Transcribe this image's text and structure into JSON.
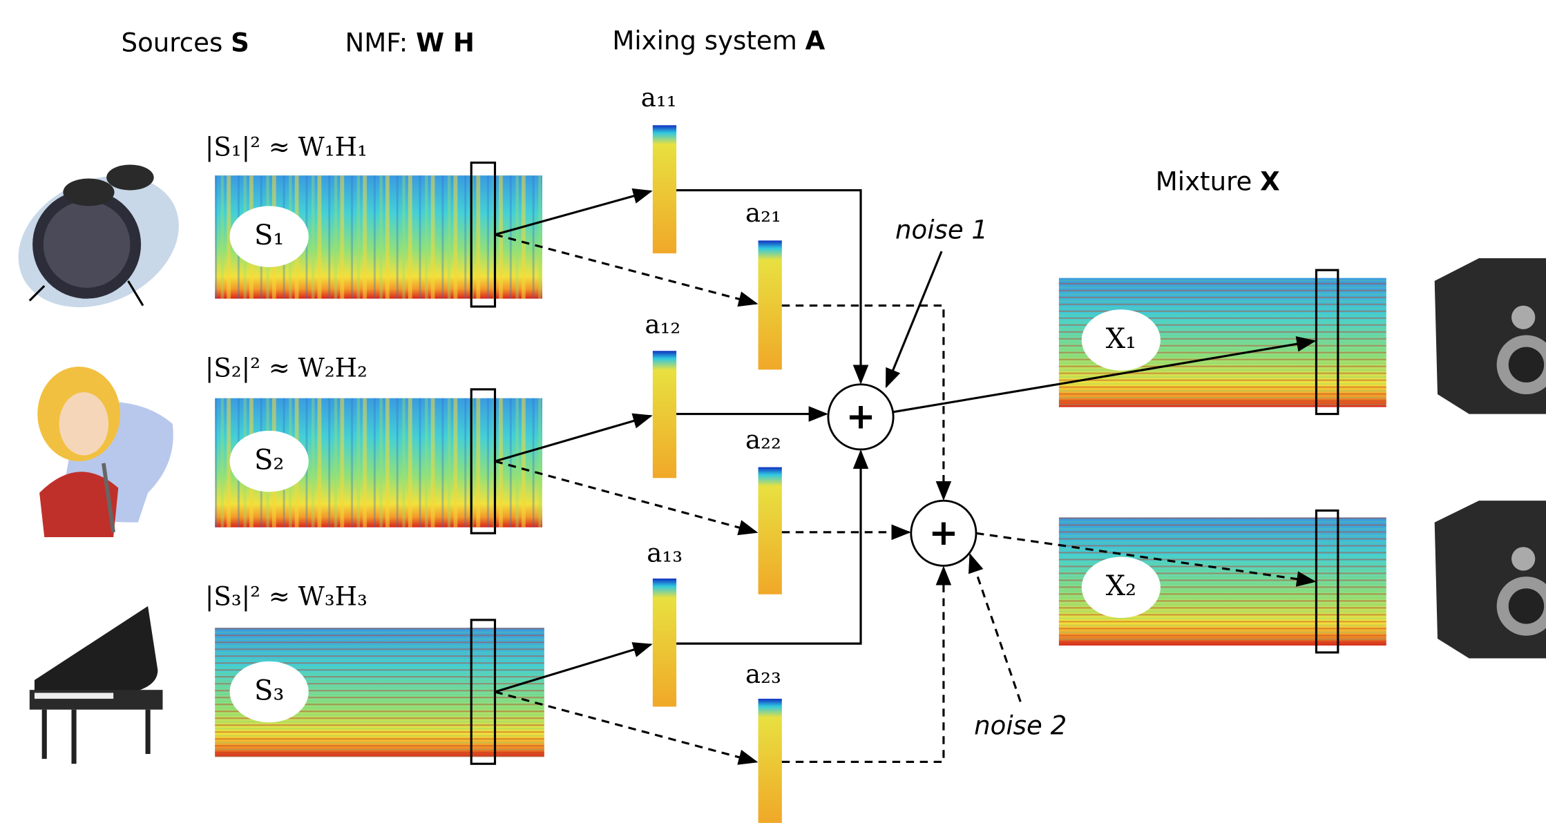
{
  "headers": [
    {
      "text": "Sources",
      "bold": "S"
    },
    {
      "text": "NMF:",
      "bold": "W H"
    },
    {
      "text": "Mixing system",
      "bold": "A"
    },
    {
      "text": "Mixture",
      "bold": "X"
    }
  ],
  "sources": [
    {
      "equation": "|S₁|² ≈ W₁H₁",
      "label": "S₁"
    },
    {
      "equation": "|S₂|² ≈ W₂H₂",
      "label": "S₂"
    },
    {
      "equation": "|S₃|² ≈ W₃H₃",
      "label": "S₃"
    }
  ],
  "mixing": [
    "a₁₁",
    "a₂₁",
    "a₁₂",
    "a₂₂",
    "a₁₃",
    "a₂₃"
  ],
  "operators": [
    "+",
    "+"
  ],
  "noise": [
    "noise 1",
    "noise 2"
  ],
  "mixtures": [
    "X₁",
    "X₂"
  ]
}
